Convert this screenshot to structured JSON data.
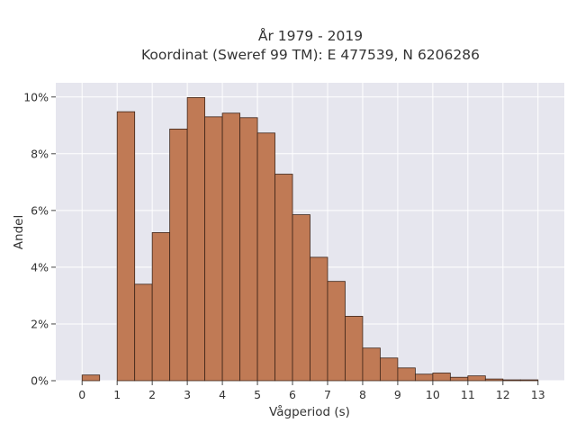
{
  "chart_data": {
    "type": "bar",
    "title": [
      "År 1979 - 2019",
      "Koordinat (Sweref 99 TM): E 477539, N 6206286"
    ],
    "xlabel": "Vågperiod (s)",
    "ylabel": "Andel",
    "xlim": [
      -0.75,
      13.75
    ],
    "ylim": [
      0,
      10.5
    ],
    "x_ticks": [
      "0",
      "1",
      "2",
      "3",
      "4",
      "5",
      "6",
      "7",
      "8",
      "9",
      "10",
      "11",
      "12",
      "13"
    ],
    "y_ticks": [
      "0%",
      "2%",
      "4%",
      "6%",
      "8%",
      "10%"
    ],
    "y_tick_values": [
      0,
      2,
      4,
      6,
      8,
      10
    ],
    "bin_width": 0.5,
    "bins": [
      {
        "start": 0.0,
        "value": 0.2
      },
      {
        "start": 1.0,
        "value": 9.48
      },
      {
        "start": 1.5,
        "value": 3.4
      },
      {
        "start": 2.0,
        "value": 5.22
      },
      {
        "start": 2.5,
        "value": 8.87
      },
      {
        "start": 3.0,
        "value": 9.98
      },
      {
        "start": 3.5,
        "value": 9.3
      },
      {
        "start": 4.0,
        "value": 9.43
      },
      {
        "start": 4.5,
        "value": 9.27
      },
      {
        "start": 5.0,
        "value": 8.73
      },
      {
        "start": 5.5,
        "value": 7.28
      },
      {
        "start": 6.0,
        "value": 5.85
      },
      {
        "start": 6.5,
        "value": 4.35
      },
      {
        "start": 7.0,
        "value": 3.5
      },
      {
        "start": 7.5,
        "value": 2.27
      },
      {
        "start": 8.0,
        "value": 1.15
      },
      {
        "start": 8.5,
        "value": 0.8
      },
      {
        "start": 9.0,
        "value": 0.45
      },
      {
        "start": 9.5,
        "value": 0.23
      },
      {
        "start": 10.0,
        "value": 0.27
      },
      {
        "start": 10.5,
        "value": 0.12
      },
      {
        "start": 11.0,
        "value": 0.17
      },
      {
        "start": 11.5,
        "value": 0.06
      },
      {
        "start": 12.0,
        "value": 0.03
      },
      {
        "start": 12.5,
        "value": 0.03
      }
    ],
    "grid": true,
    "colors": {
      "bar_fill": "#c07a55",
      "bar_stroke": "#3d2418",
      "plot_bg": "#e6e6ee",
      "grid": "#ffffff"
    }
  }
}
